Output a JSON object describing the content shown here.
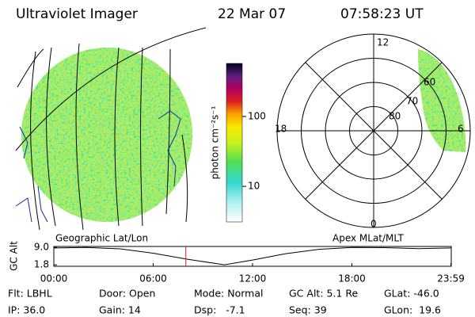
{
  "header": {
    "title": "Ultraviolet Imager",
    "date": "22 Mar 07",
    "time": "07:58:23 UT"
  },
  "colorbar": {
    "label": "photon cm⁻²s⁻¹",
    "log": true,
    "lim": [
      3.1,
      575
    ],
    "ticks": [
      10,
      100
    ]
  },
  "polar": {
    "lat_labels": [
      "80",
      "70",
      "60"
    ],
    "mlt_labels": {
      "top": "12",
      "right": "6",
      "bottom": "0",
      "left": "18"
    }
  },
  "altitude_plot": {
    "y_label": "GC Alt",
    "left_label": "Geographic Lat/Lon",
    "right_label": "Apex MLat/MLT",
    "xlim": [
      0,
      24
    ],
    "ylim": [
      1.2,
      9.4
    ],
    "xticks": [
      {
        "value": 0,
        "label": "00:00"
      },
      {
        "value": 6,
        "label": "06:00"
      },
      {
        "value": 12,
        "label": "12:00"
      },
      {
        "value": 18,
        "label": "18:00"
      },
      {
        "value": 23.98,
        "label": "23:59"
      }
    ],
    "yticks": [
      {
        "value": 9.0,
        "label": "9.0"
      },
      {
        "value": 1.8,
        "label": "1.8"
      }
    ],
    "x": [
      0,
      2,
      4,
      6,
      8,
      10.3,
      12,
      14,
      16,
      18,
      20,
      22,
      24
    ],
    "values": [
      8.8,
      9.0,
      8.4,
      6.6,
      4.2,
      1.8,
      3.8,
      6.4,
      8.2,
      9.0,
      8.9,
      8.5,
      8.8
    ],
    "current_hour": 7.97,
    "marker_color": "#e02020"
  },
  "footer": {
    "rows": [
      [
        "Flt: LBHL",
        "Door: Open",
        "Mode: Normal",
        "GC Alt: 5.1 Re",
        "GLat: -46.0"
      ],
      [
        "IP: 36.0",
        "Gain: 14",
        "Dsp:   -7.1",
        "Seq: 39",
        "GLon:  19.6"
      ]
    ]
  }
}
